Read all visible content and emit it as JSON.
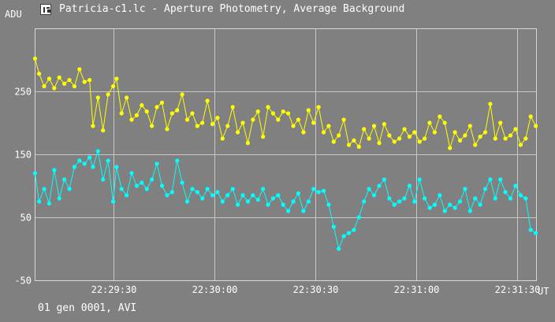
{
  "window": {
    "title": "Patricia-c1.lc - Aperture Photometry, Average Background",
    "icon": "chart-window-icon",
    "footer": "01 gen 0001, AVI"
  },
  "chart_data": {
    "type": "line",
    "ylabel": "ADU",
    "xlabel": "UT",
    "ylim": [
      -50,
      350
    ],
    "yticks": [
      -50,
      50,
      150,
      250
    ],
    "xlim_seconds": [
      17346.7,
      17495.6
    ],
    "xticks": [
      "22:29:30",
      "22:30:00",
      "22:30:30",
      "22:31:00",
      "22:31:30"
    ],
    "xtick_seconds": [
      17370,
      17400,
      17430,
      17460,
      17490
    ],
    "grid": true,
    "series": [
      {
        "color": "#ffff00",
        "points": [
          [
            17346.8,
            302
          ],
          [
            17348.0,
            278
          ],
          [
            17349.5,
            258
          ],
          [
            17351.0,
            270
          ],
          [
            17352.5,
            255
          ],
          [
            17354.0,
            272
          ],
          [
            17355.5,
            262
          ],
          [
            17357.0,
            268
          ],
          [
            17358.5,
            258
          ],
          [
            17360.0,
            285
          ],
          [
            17361.5,
            265
          ],
          [
            17363.0,
            268
          ],
          [
            17364.0,
            195
          ],
          [
            17365.5,
            240
          ],
          [
            17367.0,
            188
          ],
          [
            17368.5,
            245
          ],
          [
            17370.0,
            258
          ],
          [
            17371.0,
            270
          ],
          [
            17372.5,
            215
          ],
          [
            17374.0,
            240
          ],
          [
            17375.5,
            205
          ],
          [
            17377.0,
            212
          ],
          [
            17378.5,
            228
          ],
          [
            17380.0,
            218
          ],
          [
            17381.5,
            195
          ],
          [
            17383.0,
            225
          ],
          [
            17384.5,
            232
          ],
          [
            17386.0,
            190
          ],
          [
            17387.5,
            215
          ],
          [
            17389.0,
            220
          ],
          [
            17390.5,
            245
          ],
          [
            17392.0,
            205
          ],
          [
            17393.5,
            215
          ],
          [
            17395.0,
            195
          ],
          [
            17396.5,
            200
          ],
          [
            17398.0,
            235
          ],
          [
            17399.5,
            198
          ],
          [
            17401.0,
            208
          ],
          [
            17402.5,
            175
          ],
          [
            17404.0,
            195
          ],
          [
            17405.5,
            225
          ],
          [
            17407.0,
            185
          ],
          [
            17408.5,
            200
          ],
          [
            17410.0,
            168
          ],
          [
            17411.5,
            205
          ],
          [
            17413.0,
            218
          ],
          [
            17414.5,
            178
          ],
          [
            17416.0,
            225
          ],
          [
            17417.5,
            215
          ],
          [
            17419.0,
            205
          ],
          [
            17420.5,
            218
          ],
          [
            17422.0,
            215
          ],
          [
            17423.5,
            195
          ],
          [
            17425.0,
            205
          ],
          [
            17426.5,
            185
          ],
          [
            17428.0,
            220
          ],
          [
            17429.5,
            200
          ],
          [
            17431.0,
            225
          ],
          [
            17432.5,
            185
          ],
          [
            17434.0,
            195
          ],
          [
            17435.5,
            170
          ],
          [
            17437.0,
            180
          ],
          [
            17438.5,
            205
          ],
          [
            17440.0,
            165
          ],
          [
            17441.5,
            172
          ],
          [
            17443.0,
            162
          ],
          [
            17444.5,
            190
          ],
          [
            17446.0,
            175
          ],
          [
            17447.5,
            195
          ],
          [
            17449.0,
            168
          ],
          [
            17450.5,
            198
          ],
          [
            17452.0,
            180
          ],
          [
            17453.5,
            170
          ],
          [
            17455.0,
            175
          ],
          [
            17456.5,
            190
          ],
          [
            17458.0,
            178
          ],
          [
            17459.5,
            185
          ],
          [
            17461.0,
            170
          ],
          [
            17462.5,
            175
          ],
          [
            17464.0,
            200
          ],
          [
            17465.5,
            185
          ],
          [
            17467.0,
            210
          ],
          [
            17468.5,
            200
          ],
          [
            17470.0,
            160
          ],
          [
            17471.5,
            185
          ],
          [
            17473.0,
            172
          ],
          [
            17474.5,
            180
          ],
          [
            17476.0,
            195
          ],
          [
            17477.5,
            165
          ],
          [
            17479.0,
            178
          ],
          [
            17480.5,
            185
          ],
          [
            17482.0,
            230
          ],
          [
            17483.5,
            175
          ],
          [
            17485.0,
            200
          ],
          [
            17486.5,
            175
          ],
          [
            17488.0,
            180
          ],
          [
            17489.5,
            190
          ],
          [
            17491.0,
            165
          ],
          [
            17492.5,
            175
          ],
          [
            17494.0,
            210
          ],
          [
            17495.5,
            195
          ]
        ]
      },
      {
        "color": "#00ffff",
        "points": [
          [
            17346.8,
            120
          ],
          [
            17348.0,
            75
          ],
          [
            17349.5,
            95
          ],
          [
            17351.0,
            72
          ],
          [
            17352.5,
            125
          ],
          [
            17354.0,
            80
          ],
          [
            17355.5,
            110
          ],
          [
            17357.0,
            95
          ],
          [
            17358.5,
            130
          ],
          [
            17360.0,
            140
          ],
          [
            17361.5,
            135
          ],
          [
            17363.0,
            145
          ],
          [
            17364.0,
            130
          ],
          [
            17365.5,
            155
          ],
          [
            17367.0,
            110
          ],
          [
            17368.5,
            140
          ],
          [
            17370.0,
            75
          ],
          [
            17371.0,
            130
          ],
          [
            17372.5,
            95
          ],
          [
            17374.0,
            85
          ],
          [
            17375.5,
            120
          ],
          [
            17377.0,
            100
          ],
          [
            17378.5,
            105
          ],
          [
            17380.0,
            95
          ],
          [
            17381.5,
            110
          ],
          [
            17383.0,
            135
          ],
          [
            17384.5,
            100
          ],
          [
            17386.0,
            85
          ],
          [
            17387.5,
            90
          ],
          [
            17389.0,
            140
          ],
          [
            17390.5,
            105
          ],
          [
            17392.0,
            75
          ],
          [
            17393.5,
            95
          ],
          [
            17395.0,
            90
          ],
          [
            17396.5,
            80
          ],
          [
            17398.0,
            95
          ],
          [
            17399.5,
            85
          ],
          [
            17401.0,
            90
          ],
          [
            17402.5,
            75
          ],
          [
            17404.0,
            85
          ],
          [
            17405.5,
            95
          ],
          [
            17407.0,
            70
          ],
          [
            17408.5,
            85
          ],
          [
            17410.0,
            75
          ],
          [
            17411.5,
            85
          ],
          [
            17413.0,
            78
          ],
          [
            17414.5,
            95
          ],
          [
            17416.0,
            70
          ],
          [
            17417.5,
            80
          ],
          [
            17419.0,
            85
          ],
          [
            17420.5,
            70
          ],
          [
            17422.0,
            60
          ],
          [
            17423.5,
            75
          ],
          [
            17425.0,
            88
          ],
          [
            17426.5,
            60
          ],
          [
            17428.0,
            75
          ],
          [
            17429.5,
            95
          ],
          [
            17431.0,
            90
          ],
          [
            17432.5,
            92
          ],
          [
            17434.0,
            70
          ],
          [
            17435.5,
            35
          ],
          [
            17437.0,
            0
          ],
          [
            17438.5,
            20
          ],
          [
            17440.0,
            25
          ],
          [
            17441.5,
            30
          ],
          [
            17443.0,
            50
          ],
          [
            17444.5,
            75
          ],
          [
            17446.0,
            95
          ],
          [
            17447.5,
            85
          ],
          [
            17449.0,
            100
          ],
          [
            17450.5,
            110
          ],
          [
            17452.0,
            80
          ],
          [
            17453.5,
            70
          ],
          [
            17455.0,
            75
          ],
          [
            17456.5,
            80
          ],
          [
            17458.0,
            100
          ],
          [
            17459.5,
            75
          ],
          [
            17461.0,
            110
          ],
          [
            17462.5,
            80
          ],
          [
            17464.0,
            65
          ],
          [
            17465.5,
            70
          ],
          [
            17467.0,
            85
          ],
          [
            17468.5,
            60
          ],
          [
            17470.0,
            70
          ],
          [
            17471.5,
            65
          ],
          [
            17473.0,
            75
          ],
          [
            17474.5,
            95
          ],
          [
            17476.0,
            60
          ],
          [
            17477.5,
            80
          ],
          [
            17479.0,
            70
          ],
          [
            17480.5,
            95
          ],
          [
            17482.0,
            110
          ],
          [
            17483.5,
            80
          ],
          [
            17485.0,
            110
          ],
          [
            17486.5,
            90
          ],
          [
            17488.0,
            80
          ],
          [
            17489.5,
            100
          ],
          [
            17491.0,
            85
          ],
          [
            17492.5,
            80
          ],
          [
            17494.0,
            30
          ],
          [
            17495.5,
            25
          ]
        ]
      }
    ]
  }
}
